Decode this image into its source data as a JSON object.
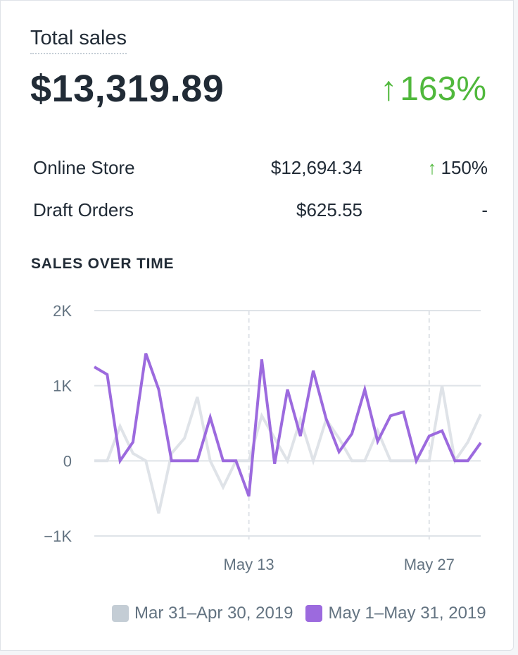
{
  "card": {
    "title": "Total sales",
    "total": "$13,319.89",
    "growth_arrow": "↑",
    "growth": "163%"
  },
  "breakdown": [
    {
      "label": "Online Store",
      "value": "$12,694.34",
      "change_arrow": "↑",
      "change": "150%"
    },
    {
      "label": "Draft Orders",
      "value": "$625.55",
      "change_arrow": "",
      "change": "-"
    }
  ],
  "colors": {
    "positive": "#50b83c",
    "current_series": "#9c6ade",
    "previous_series": "#dfe3e8"
  },
  "chart_data": {
    "type": "line",
    "title": "SALES OVER TIME",
    "xlabel": "",
    "ylabel": "",
    "ylim": [
      -1000,
      2000
    ],
    "yticks": [
      2000,
      1000,
      0,
      -1000
    ],
    "ytick_labels": [
      "2K",
      "1K",
      "0",
      "−1K"
    ],
    "xtick_labels": [
      {
        "label": "May 13",
        "index": 12
      },
      {
        "label": "May 27",
        "index": 26
      }
    ],
    "grid": true,
    "legend_placement": "bottom",
    "series": [
      {
        "name": "Mar 31–Apr 30, 2019",
        "color": "#dfe3e8",
        "values": [
          0,
          0,
          460,
          100,
          0,
          -700,
          100,
          300,
          850,
          0,
          -350,
          0,
          0,
          600,
          300,
          0,
          550,
          0,
          550,
          300,
          0,
          0,
          400,
          0,
          0,
          0,
          0,
          1000,
          0,
          250,
          620
        ]
      },
      {
        "name": "May 1–May 31, 2019",
        "color": "#9c6ade",
        "values": [
          1250,
          1150,
          0,
          250,
          1430,
          950,
          0,
          0,
          0,
          580,
          0,
          0,
          -470,
          1350,
          -40,
          950,
          330,
          1200,
          560,
          120,
          360,
          950,
          260,
          600,
          650,
          0,
          330,
          400,
          0,
          0,
          240
        ]
      }
    ]
  }
}
